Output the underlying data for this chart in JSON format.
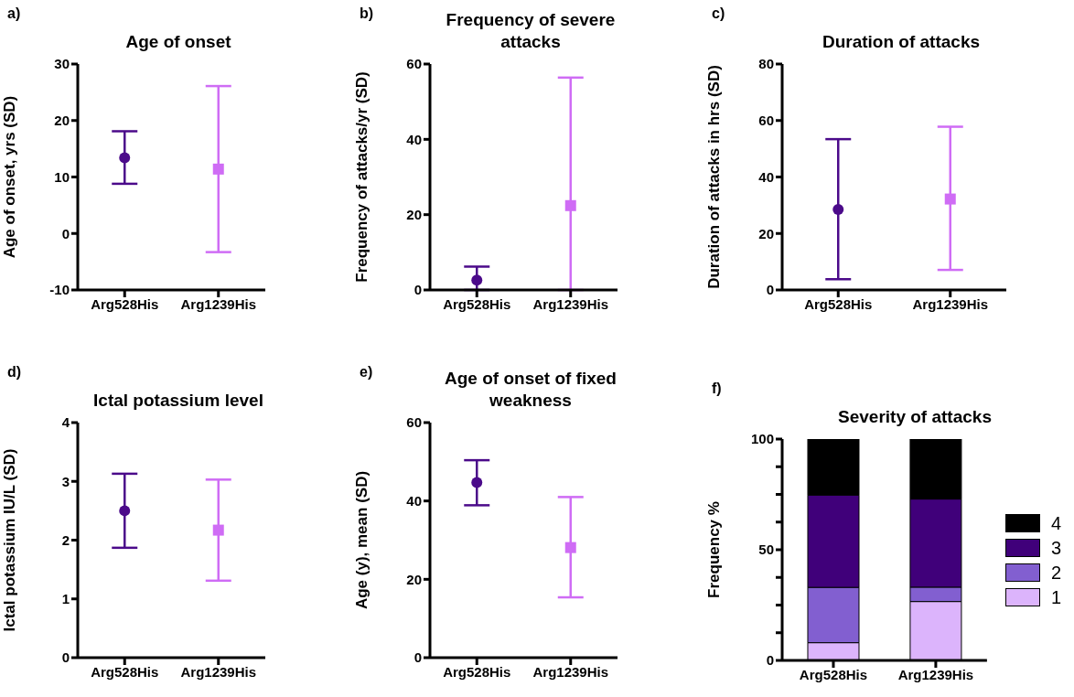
{
  "chart_data": [
    {
      "type": "scatter",
      "title": "Age of onset",
      "annotations": [
        "a)"
      ],
      "ylabel": "Age of onset, yrs (SD)",
      "categories": [
        "Arg528His",
        "Arg1239His"
      ],
      "ylim": [
        -10,
        30
      ],
      "yticks": [
        -10,
        0,
        10,
        20,
        30
      ],
      "series": [
        {
          "color": "#4b0a8a",
          "marker": "circle",
          "values": [
            13.4,
            null
          ],
          "errors": [
            [
              8.8,
              18.1
            ],
            null
          ]
        },
        {
          "color": "#cf6cf5",
          "marker": "square",
          "values": [
            null,
            11.4
          ],
          "errors": [
            null,
            [
              -3.3,
              26.1
            ]
          ]
        }
      ]
    },
    {
      "type": "scatter",
      "title": "Frequency of severe attacks",
      "annotations": [
        "b)"
      ],
      "ylabel": "Frequency of attacks/yr (SD)",
      "categories": [
        "Arg528His",
        "Arg1239His"
      ],
      "ylim": [
        0,
        60
      ],
      "yticks": [
        0,
        20,
        40,
        60
      ],
      "series": [
        {
          "color": "#4b0a8a",
          "marker": "circle",
          "values": [
            2.6,
            null
          ],
          "errors": [
            [
              0,
              6.2
            ],
            null
          ]
        },
        {
          "color": "#cf6cf5",
          "marker": "square",
          "values": [
            null,
            22.4
          ],
          "errors": [
            null,
            [
              0,
              56.4
            ]
          ]
        }
      ]
    },
    {
      "type": "scatter",
      "title": "Duration of attacks",
      "annotations": [
        "c)"
      ],
      "ylabel": "Duration of attacks in hrs (SD)",
      "categories": [
        "Arg528His",
        "Arg1239His"
      ],
      "ylim": [
        0,
        80
      ],
      "yticks": [
        0,
        20,
        40,
        60,
        80
      ],
      "series": [
        {
          "color": "#4b0a8a",
          "marker": "circle",
          "values": [
            28.5,
            null
          ],
          "errors": [
            [
              3.8,
              53.4
            ],
            null
          ]
        },
        {
          "color": "#cf6cf5",
          "marker": "square",
          "values": [
            null,
            32.2
          ],
          "errors": [
            null,
            [
              7.1,
              57.8
            ]
          ]
        }
      ]
    },
    {
      "type": "scatter",
      "title": "Ictal potassium level",
      "annotations": [
        "d)"
      ],
      "ylabel": "Ictal potassium IU/L (SD)",
      "categories": [
        "Arg528His",
        "Arg1239His"
      ],
      "ylim": [
        0,
        4
      ],
      "yticks": [
        0,
        1,
        2,
        3,
        4
      ],
      "series": [
        {
          "color": "#4b0a8a",
          "marker": "circle",
          "values": [
            2.5,
            null
          ],
          "errors": [
            [
              1.87,
              3.13
            ],
            null
          ]
        },
        {
          "color": "#cf6cf5",
          "marker": "square",
          "values": [
            null,
            2.17
          ],
          "errors": [
            null,
            [
              1.31,
              3.03
            ]
          ]
        }
      ]
    },
    {
      "type": "scatter",
      "title": "Age of onset of fixed weakness",
      "annotations": [
        "e)"
      ],
      "ylabel": "Age (y), mean (SD)",
      "categories": [
        "Arg528His",
        "Arg1239His"
      ],
      "ylim": [
        0,
        60
      ],
      "yticks": [
        0,
        20,
        40,
        60
      ],
      "series": [
        {
          "color": "#4b0a8a",
          "marker": "circle",
          "values": [
            44.7,
            null
          ],
          "errors": [
            [
              38.9,
              50.4
            ],
            null
          ]
        },
        {
          "color": "#cf6cf5",
          "marker": "square",
          "values": [
            null,
            28.1
          ],
          "errors": [
            null,
            [
              15.4,
              41.0
            ]
          ]
        }
      ]
    },
    {
      "type": "bar",
      "stacked": true,
      "title": "Severity of attacks",
      "annotations": [
        "f)"
      ],
      "ylabel": "Frequency %",
      "categories": [
        "Arg528His",
        "Arg1239His"
      ],
      "ylim": [
        0,
        100
      ],
      "yticks": [
        0,
        {
          "value": 12.5,
          "label": null
        },
        {
          "value": 25,
          "label": null
        },
        {
          "value": 37.5,
          "label": null
        },
        50,
        {
          "value": 62.5,
          "label": null
        },
        {
          "value": 75,
          "label": null
        },
        {
          "value": 87.5,
          "label": null
        },
        100
      ],
      "legend": "right",
      "series": [
        {
          "name": "1",
          "color": "#dcb4fc",
          "values": [
            8.0,
            26.6
          ]
        },
        {
          "name": "2",
          "color": "#825fd0",
          "values": [
            25.0,
            6.5
          ]
        },
        {
          "name": "3",
          "color": "#40007a",
          "values": [
            41.7,
            39.8
          ]
        },
        {
          "name": "4",
          "color": "#000000",
          "values": [
            25.3,
            27.1
          ]
        }
      ]
    }
  ]
}
